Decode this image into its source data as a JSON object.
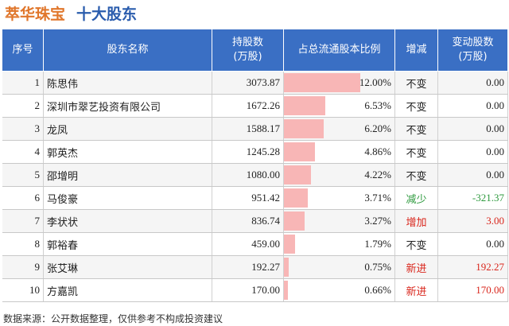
{
  "header": {
    "company": "萃华珠宝",
    "subtitle": "十大股东"
  },
  "table": {
    "columns": {
      "index": "序号",
      "name": "股东名称",
      "shares": "持股数\n(万股)",
      "ratio": "占总流通股本比例",
      "change": "增减",
      "delta": "变动股数\n(万股)"
    },
    "rows": [
      {
        "idx": "1",
        "name": "陈思伟",
        "shares": "3073.87",
        "ratio": "12.00%",
        "ratio_value": 12.0,
        "change": "不变",
        "change_color": "#222222",
        "delta": "0.00",
        "delta_color": "#222222"
      },
      {
        "idx": "2",
        "name": "深圳市翠艺投资有限公司",
        "shares": "1672.26",
        "ratio": "6.53%",
        "ratio_value": 6.53,
        "change": "不变",
        "change_color": "#222222",
        "delta": "0.00",
        "delta_color": "#222222"
      },
      {
        "idx": "3",
        "name": "龙凤",
        "shares": "1588.17",
        "ratio": "6.20%",
        "ratio_value": 6.2,
        "change": "不变",
        "change_color": "#222222",
        "delta": "0.00",
        "delta_color": "#222222"
      },
      {
        "idx": "4",
        "name": "郭英杰",
        "shares": "1245.28",
        "ratio": "4.86%",
        "ratio_value": 4.86,
        "change": "不变",
        "change_color": "#222222",
        "delta": "0.00",
        "delta_color": "#222222"
      },
      {
        "idx": "5",
        "name": "邵增明",
        "shares": "1080.00",
        "ratio": "4.22%",
        "ratio_value": 4.22,
        "change": "不变",
        "change_color": "#222222",
        "delta": "0.00",
        "delta_color": "#222222"
      },
      {
        "idx": "6",
        "name": "马俊豪",
        "shares": "951.42",
        "ratio": "3.71%",
        "ratio_value": 3.71,
        "change": "减少",
        "change_color": "#2e9a3e",
        "delta": "-321.37",
        "delta_color": "#2e9a3e"
      },
      {
        "idx": "7",
        "name": "李状状",
        "shares": "836.74",
        "ratio": "3.27%",
        "ratio_value": 3.27,
        "change": "增加",
        "change_color": "#d9261c",
        "delta": "3.00",
        "delta_color": "#d9261c"
      },
      {
        "idx": "8",
        "name": "郭裕春",
        "shares": "459.00",
        "ratio": "1.79%",
        "ratio_value": 1.79,
        "change": "不变",
        "change_color": "#222222",
        "delta": "0.00",
        "delta_color": "#222222"
      },
      {
        "idx": "9",
        "name": "张艾琳",
        "shares": "192.27",
        "ratio": "0.75%",
        "ratio_value": 0.75,
        "change": "新进",
        "change_color": "#d9261c",
        "delta": "192.27",
        "delta_color": "#d9261c"
      },
      {
        "idx": "10",
        "name": "方嘉凯",
        "shares": "170.00",
        "ratio": "0.66%",
        "ratio_value": 0.66,
        "change": "新进",
        "change_color": "#d9261c",
        "delta": "170.00",
        "delta_color": "#d9261c"
      }
    ]
  },
  "colors": {
    "header_bg": "#3a6fc4",
    "bar": "#f8b6b6",
    "company": "#e0762b",
    "subtitle": "#2a5cad"
  },
  "footer": {
    "source": "数据来源：公开数据整理，仅供参考不构成投资建议"
  }
}
